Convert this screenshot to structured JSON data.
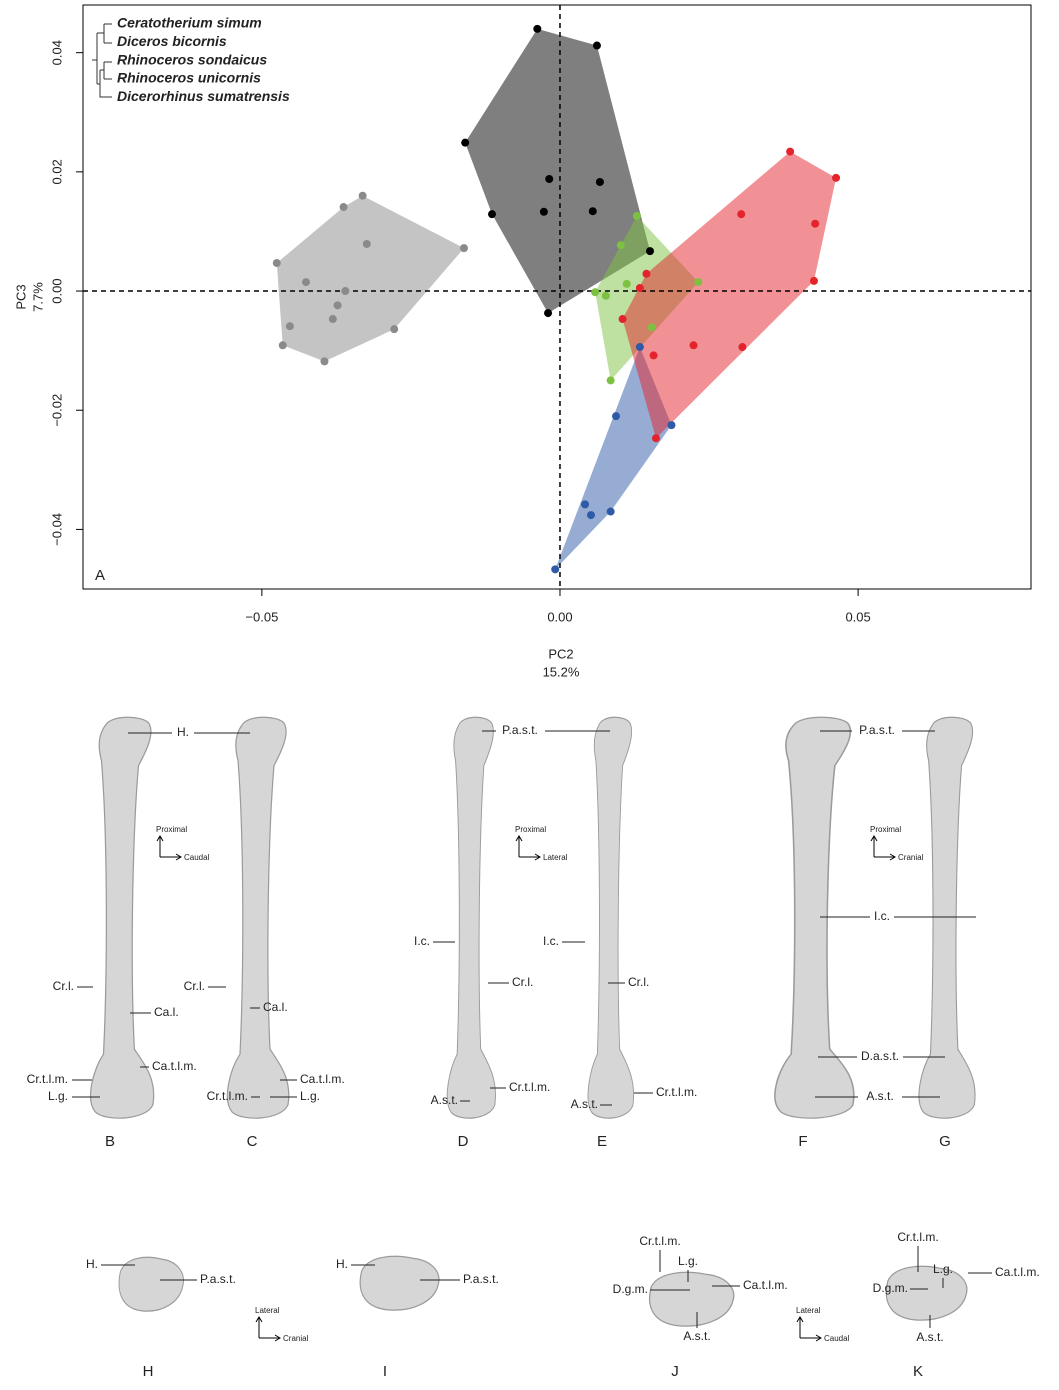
{
  "chart_data": {
    "type": "scatter",
    "panel_label": "A",
    "xlabel": "PC2",
    "xlabel_sub": "15.2%",
    "ylabel": "PC3",
    "ylabel_sub": "7.7%",
    "xlim": [
      -0.08,
      0.079
    ],
    "ylim": [
      -0.05,
      0.048
    ],
    "xticks": [
      {
        "value": -0.05,
        "label": "−0.05"
      },
      {
        "value": 0,
        "label": "0.00"
      },
      0.05
    ],
    "yticks": [
      {
        "value": -0.04,
        "label": "−0.04"
      },
      {
        "value": -0.02,
        "label": "−0.02"
      },
      {
        "value": 0,
        "label": "0.00"
      },
      0.02,
      0.04
    ],
    "zero_lines": true,
    "convex_hulls": true,
    "series": [
      {
        "name": "Ceratotherium simum",
        "color": "#8a8a8a",
        "x": [
          -0.0331,
          -0.0363,
          -0.0324,
          -0.0161,
          -0.0475,
          -0.0426,
          -0.036,
          -0.0373,
          -0.0381,
          -0.0453,
          -0.0278,
          -0.0465,
          -0.0395
        ],
        "values": [
          0.016,
          0.0141,
          0.0079,
          0.0072,
          0.0047,
          0.0015,
          0.0,
          -0.0024,
          -0.0047,
          -0.0059,
          -0.0064,
          -0.0091,
          -0.0118
        ]
      },
      {
        "name": "Diceros bicornis",
        "color": "#000000",
        "x": [
          -0.0038,
          0.0062,
          -0.0159,
          -0.0018,
          0.0067,
          -0.0114,
          -0.0027,
          0.0055,
          0.0151,
          -0.002
        ],
        "values": [
          0.044,
          0.0412,
          0.0249,
          0.0188,
          0.0183,
          0.0129,
          0.0133,
          0.0134,
          0.0067,
          -0.0037
        ]
      },
      {
        "name": "Rhinoceros sondaicus",
        "color": "#2f5aa8",
        "x": [
          0.0134,
          0.0094,
          0.0187,
          0.0042,
          0.0052,
          0.0085,
          -0.0008
        ],
        "values": [
          -0.0094,
          -0.021,
          -0.0225,
          -0.0358,
          -0.0376,
          -0.037,
          -0.0467
        ]
      },
      {
        "name": "Rhinoceros unicornis",
        "color": "#7dc142",
        "x": [
          0.0129,
          0.0102,
          0.0112,
          0.0232,
          0.0059,
          0.0077,
          0.0154,
          0.0085
        ],
        "values": [
          0.0126,
          0.0077,
          0.0012,
          0.0015,
          -0.0002,
          -0.0008,
          -0.0061,
          -0.015
        ]
      },
      {
        "name": "Dicerorhinus sumatrensis",
        "color": "#e4242c",
        "x": [
          0.0386,
          0.0463,
          0.0304,
          0.0428,
          0.0145,
          0.0426,
          0.0134,
          0.0105,
          0.0224,
          0.0306,
          0.0157,
          0.0161
        ],
        "values": [
          0.0234,
          0.019,
          0.0129,
          0.0113,
          0.0029,
          0.0017,
          0.0005,
          -0.0047,
          -0.0091,
          -0.0094,
          -0.0108,
          -0.0247
        ]
      }
    ]
  },
  "figure": {
    "panel_letters": [
      "B",
      "C",
      "D",
      "E",
      "F",
      "G",
      "H",
      "I",
      "J",
      "K"
    ],
    "orientation": [
      [
        "Proximal",
        "Caudal"
      ],
      [
        "Proximal",
        "Lateral"
      ],
      [
        "Proximal",
        "Cranial"
      ],
      [
        "Lateral",
        "Cranial"
      ],
      [
        "Lateral",
        "Caudal"
      ]
    ],
    "annotations": [
      "H.",
      "Cr.l.",
      "Ca.l.",
      "Ca.t.l.m.",
      "Cr.t.l.m.",
      "L.g.",
      "Cr.l.",
      "Ca.l.",
      "Ca.t.l.m.",
      "Cr.t.l.m.",
      "L.g.",
      "P.a.s.t.",
      "I.c.",
      "Cr.l.",
      "Cr.t.l.m.",
      "A.s.t.",
      "I.c.",
      "Cr.l.",
      "A.s.t.",
      "Cr.t.l.m.",
      "P.a.s.t.",
      "I.c.",
      "D.a.s.t.",
      "A.s.t.",
      "H.",
      "P.a.s.t.",
      "H.",
      "P.a.s.t.",
      "Cr.t.l.m.",
      "L.g.",
      "Ca.t.l.m.",
      "D.g.m.",
      "A.s.t.",
      "Cr.t.l.m.",
      "L.g.",
      "Ca.t.l.m.",
      "D.g.m.",
      "A.s.t."
    ]
  }
}
